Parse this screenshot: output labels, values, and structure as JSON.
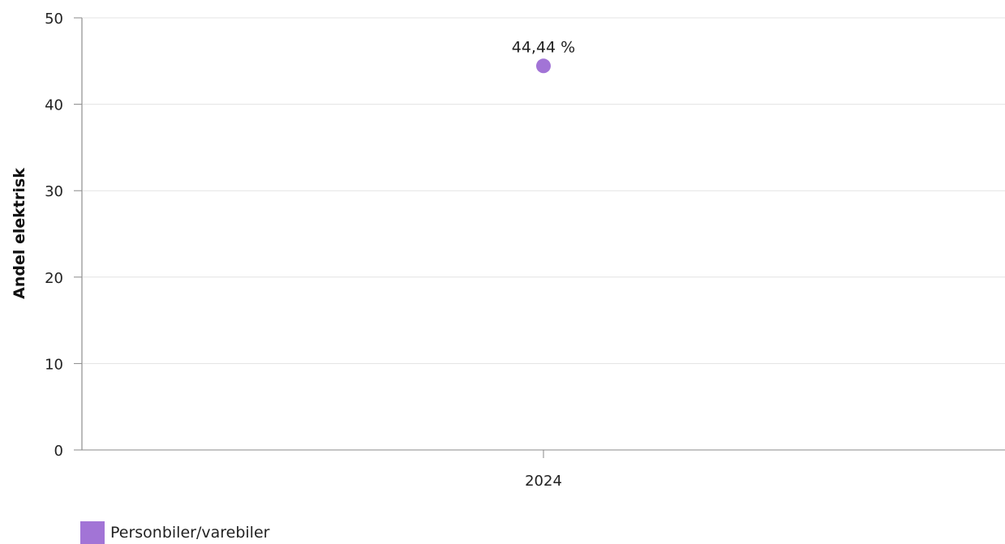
{
  "chart_data": {
    "type": "scatter",
    "ylabel": "Andel elektrisk",
    "ylim": [
      0,
      50
    ],
    "yticks": [
      "0",
      "10",
      "20",
      "30",
      "40",
      "50"
    ],
    "categories": [
      "2024"
    ],
    "series": [
      {
        "name": "Personbiler/varebiler",
        "color": "#a274d6",
        "values": [
          44.44
        ],
        "labels": [
          "44,44 %"
        ]
      }
    ],
    "grid": true,
    "legend": "bottom-left"
  }
}
